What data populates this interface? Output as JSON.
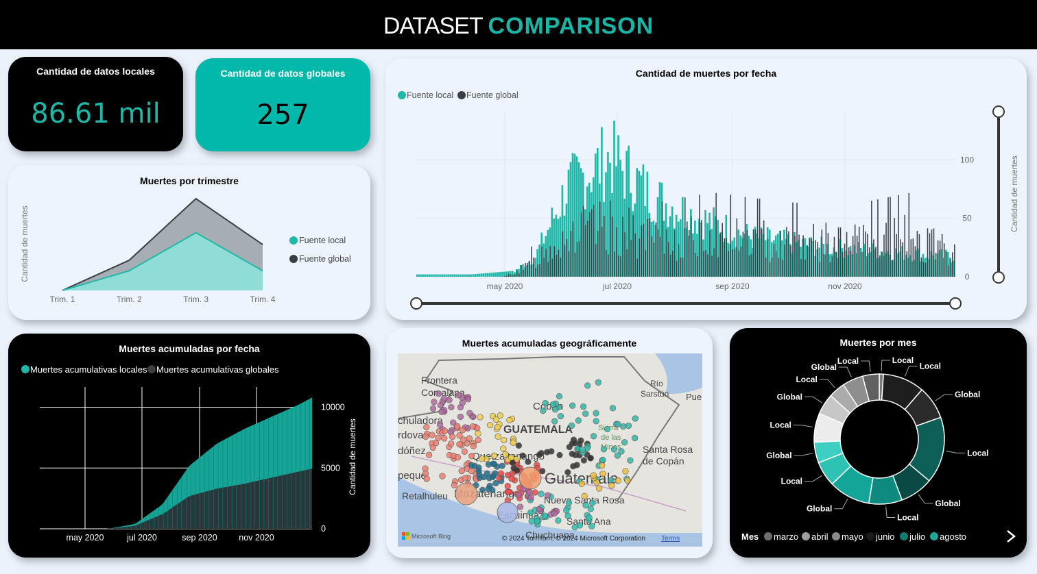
{
  "header": {
    "title_part1": "DATASET",
    "title_part2": "COMPARISON"
  },
  "colors": {
    "local": "#1fb8a8",
    "global": "#3a3f44",
    "kpi_teal": "#01b8aa",
    "dark": "#000000",
    "panel": "#eef4fd"
  },
  "kpi_local": {
    "title": "Cantidad de datos locales",
    "value": "86.61 mil"
  },
  "kpi_global": {
    "title": "Cantidad de datos globales",
    "value": "257"
  },
  "chart_data": [
    {
      "id": "trimestre",
      "type": "area",
      "title": "Muertes por trimestre",
      "ylabel": "Cantidad de muertes",
      "categories": [
        "Trim. 1",
        "Trim. 2",
        "Trim. 3",
        "Trim. 4"
      ],
      "series": [
        {
          "name": "Fuente local",
          "values": [
            0,
            1500,
            4400,
            1500
          ]
        },
        {
          "name": "Fuente global",
          "values": [
            0,
            2300,
            7000,
            3500
          ]
        }
      ],
      "legend": "right"
    },
    {
      "id": "por_fecha",
      "type": "bar",
      "title": "Cantidad de muertes por fecha",
      "ylabel": "Cantidad de muertes",
      "x_ticks": [
        "may 2020",
        "jul 2020",
        "sep 2020",
        "nov 2020"
      ],
      "y_ticks": [
        "0",
        "50",
        "100"
      ],
      "ylim": [
        0,
        140
      ],
      "legend": "top-left",
      "series": [
        {
          "name": "Fuente local",
          "profile": [
            [
              0,
              2
            ],
            [
              0.1,
              2
            ],
            [
              0.18,
              5
            ],
            [
              0.22,
              20
            ],
            [
              0.28,
              90
            ],
            [
              0.36,
              120
            ],
            [
              0.44,
              80
            ],
            [
              0.52,
              60
            ],
            [
              0.62,
              40
            ],
            [
              0.75,
              30
            ],
            [
              0.88,
              25
            ],
            [
              1.0,
              20
            ]
          ]
        },
        {
          "name": "Fuente global",
          "profile": [
            [
              0,
              0
            ],
            [
              0.16,
              0
            ],
            [
              0.2,
              10
            ],
            [
              0.28,
              50
            ],
            [
              0.36,
              55
            ],
            [
              0.45,
              40
            ],
            [
              0.55,
              45
            ],
            [
              0.68,
              40
            ],
            [
              0.8,
              38
            ],
            [
              0.92,
              45
            ],
            [
              1.0,
              25
            ]
          ]
        }
      ]
    },
    {
      "id": "acumuladas",
      "type": "area",
      "title": "Muertes acumuladas por fecha",
      "ylabel": "Cantidad de muertes",
      "x_ticks": [
        "may 2020",
        "jul 2020",
        "sep 2020",
        "nov 2020"
      ],
      "y_ticks": [
        "0",
        "5000",
        "10000"
      ],
      "ylim": [
        0,
        12000
      ],
      "legend": "top-left",
      "series": [
        {
          "name": "Muertes acumulativas locales",
          "profile": [
            [
              0,
              0
            ],
            [
              0.25,
              0
            ],
            [
              0.35,
              400
            ],
            [
              0.45,
              2000
            ],
            [
              0.55,
              5200
            ],
            [
              0.65,
              7000
            ],
            [
              0.75,
              8200
            ],
            [
              0.85,
              9200
            ],
            [
              0.95,
              10200
            ],
            [
              1.0,
              10800
            ]
          ]
        },
        {
          "name": "Muertes acumulativas globales",
          "profile": [
            [
              0,
              0
            ],
            [
              0.25,
              0
            ],
            [
              0.35,
              250
            ],
            [
              0.45,
              1200
            ],
            [
              0.55,
              2700
            ],
            [
              0.65,
              3300
            ],
            [
              0.75,
              3700
            ],
            [
              0.85,
              4200
            ],
            [
              0.95,
              4700
            ],
            [
              1.0,
              4950
            ]
          ]
        }
      ]
    },
    {
      "id": "por_mes",
      "type": "pie",
      "title": "Muertes por mes",
      "legend_title": "Mes",
      "legend": [
        "marzo",
        "abril",
        "mayo",
        "junio",
        "julio",
        "agosto"
      ],
      "legend_colors": [
        "#6e6e6e",
        "#a0a0a0",
        "#8a8a8a",
        "#1c1c1c",
        "#0e7d74",
        "#1aa89b"
      ],
      "slices": [
        {
          "label": "Local",
          "value": 1,
          "color": "#7a7a7a"
        },
        {
          "label": "Local",
          "value": 10,
          "color": "#1e1e1e"
        },
        {
          "label": "Global",
          "value": 8,
          "color": "#2b2b2b"
        },
        {
          "label": "Local",
          "value": 16,
          "color": "#0c5e57"
        },
        {
          "label": "Global",
          "value": 8,
          "color": "#0a4a45"
        },
        {
          "label": "Local",
          "value": 8,
          "color": "#0f8a80"
        },
        {
          "label": "Global",
          "value": 10,
          "color": "#13a597"
        },
        {
          "label": "Local",
          "value": 6,
          "color": "#2ec2b4"
        },
        {
          "label": "Global",
          "value": 5,
          "color": "#3fcfc2"
        },
        {
          "label": "Local",
          "value": 7,
          "color": "#ececec"
        },
        {
          "label": "Global",
          "value": 5,
          "color": "#c7c7c7"
        },
        {
          "label": "Local",
          "value": 4,
          "color": "#ababab"
        },
        {
          "label": "Global",
          "value": 5,
          "color": "#8e8e8e"
        },
        {
          "label": "Local",
          "value": 4,
          "color": "#606060"
        }
      ]
    }
  ],
  "map": {
    "title": "Muertes acumuladas geográficamente",
    "labels": [
      "Frontera",
      "Comalapa",
      "GUATEMALA",
      "Coban",
      "Río",
      "Sarstún",
      "Pue",
      "Sierra",
      "de las",
      "Minas",
      "Quetzaltenango",
      "Guatemala",
      "Santa Rosa",
      "de Copán",
      "Retalhuleu",
      "Mazatenango",
      "Escuintla",
      "Nueva Santa Rosa",
      "Santa Ana",
      "chuladora",
      "rdova",
      "dóñez",
      "peque",
      "Chuchuapa"
    ],
    "attribution": "© 2024 TomTom, © 2024 Microsoft Corporation",
    "terms": "Terms",
    "bing": "Microsoft Bing"
  }
}
